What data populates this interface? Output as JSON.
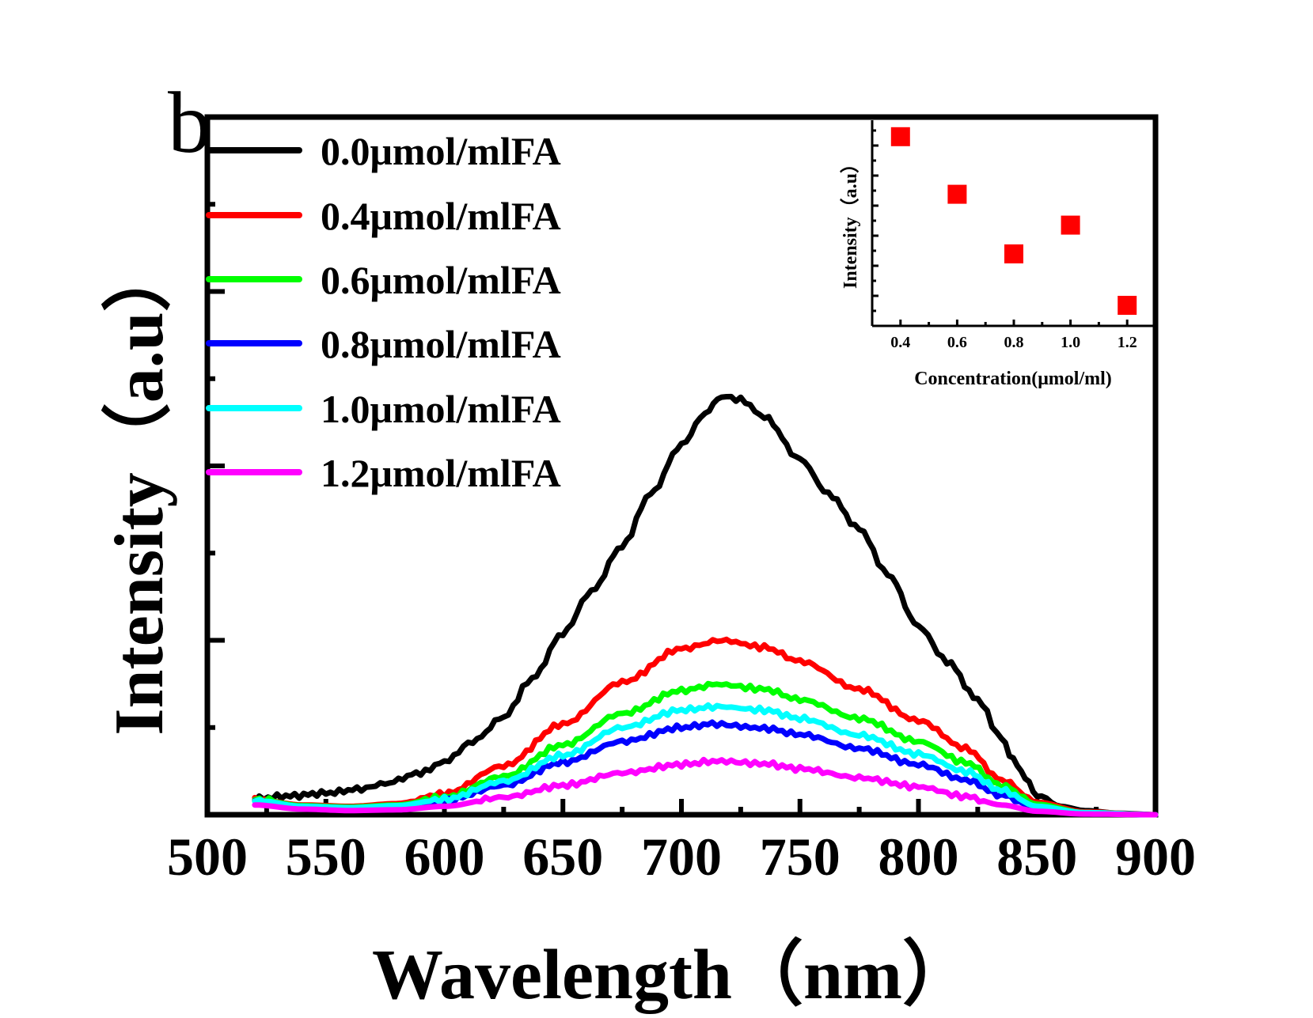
{
  "panel_label": "b",
  "chart_data": [
    {
      "id": "main",
      "type": "line",
      "title": "",
      "xlabel": "Wavelength（nm）",
      "ylabel": "Intensity（a.u）",
      "xlim": [
        500,
        900
      ],
      "ylim": [
        0,
        1
      ],
      "y_units": "relative (unlabeled axis, fraction of plotted range)",
      "x_ticks": [
        500,
        550,
        600,
        650,
        700,
        750,
        800,
        850,
        900
      ],
      "x_tick_labels": [
        "500",
        "550",
        "600",
        "650",
        "700",
        "750",
        "800",
        "850",
        "900"
      ],
      "y_ticks_labeled": false,
      "grid": false,
      "legend_position": "top-left",
      "series": [
        {
          "name": "0.0μmol/mlFA",
          "color": "#000000",
          "x": [
            520,
            535,
            550,
            565,
            575,
            590,
            600,
            612,
            625,
            637,
            650,
            662,
            675,
            687,
            700,
            710,
            717,
            725,
            735,
            750,
            762,
            775,
            787,
            800,
            812,
            825,
            835,
            840,
            845,
            850,
            860,
            870,
            885,
            900
          ],
          "y": [
            0.023,
            0.027,
            0.031,
            0.037,
            0.045,
            0.06,
            0.076,
            0.105,
            0.14,
            0.195,
            0.26,
            0.32,
            0.385,
            0.46,
            0.53,
            0.575,
            0.6,
            0.595,
            0.57,
            0.51,
            0.46,
            0.41,
            0.345,
            0.27,
            0.22,
            0.165,
            0.11,
            0.08,
            0.052,
            0.028,
            0.012,
            0.006,
            0.002,
            0.0
          ]
        },
        {
          "name": "0.4μmol/mlFA",
          "color": "#ff0000",
          "x": [
            520,
            540,
            560,
            580,
            600,
            625,
            650,
            675,
            700,
            717,
            735,
            750,
            775,
            800,
            820,
            835,
            850,
            870,
            900
          ],
          "y": [
            0.022,
            0.014,
            0.012,
            0.016,
            0.03,
            0.07,
            0.13,
            0.19,
            0.238,
            0.25,
            0.24,
            0.22,
            0.18,
            0.135,
            0.095,
            0.05,
            0.018,
            0.004,
            0.0
          ]
        },
        {
          "name": "0.6μmol/mlFA",
          "color": "#00ff00",
          "x": [
            520,
            540,
            560,
            580,
            600,
            625,
            650,
            675,
            700,
            715,
            735,
            750,
            775,
            800,
            820,
            835,
            850,
            870,
            900
          ],
          "y": [
            0.022,
            0.013,
            0.011,
            0.014,
            0.025,
            0.055,
            0.1,
            0.145,
            0.178,
            0.187,
            0.18,
            0.165,
            0.138,
            0.105,
            0.075,
            0.042,
            0.015,
            0.003,
            0.0
          ]
        },
        {
          "name": "0.8μmol/mlFA",
          "color": "#0000ff",
          "x": [
            520,
            540,
            560,
            580,
            600,
            625,
            650,
            675,
            700,
            713,
            735,
            750,
            775,
            800,
            820,
            835,
            850,
            870,
            900
          ],
          "y": [
            0.02,
            0.012,
            0.01,
            0.012,
            0.02,
            0.042,
            0.075,
            0.105,
            0.125,
            0.13,
            0.124,
            0.115,
            0.095,
            0.072,
            0.05,
            0.028,
            0.01,
            0.002,
            0.0
          ]
        },
        {
          "name": "1.0μmol/mlFA",
          "color": "#00ffff",
          "x": [
            520,
            540,
            560,
            580,
            600,
            625,
            650,
            675,
            700,
            715,
            735,
            750,
            775,
            800,
            820,
            835,
            850,
            870,
            900
          ],
          "y": [
            0.021,
            0.012,
            0.01,
            0.013,
            0.022,
            0.048,
            0.085,
            0.125,
            0.15,
            0.155,
            0.15,
            0.138,
            0.114,
            0.087,
            0.062,
            0.035,
            0.012,
            0.003,
            0.0
          ]
        },
        {
          "name": "1.2μmol/mlFA",
          "color": "#ff00ff",
          "x": [
            520,
            540,
            560,
            580,
            600,
            625,
            650,
            675,
            700,
            715,
            735,
            750,
            775,
            800,
            820,
            835,
            850,
            870,
            900
          ],
          "y": [
            0.014,
            0.008,
            0.006,
            0.007,
            0.012,
            0.025,
            0.042,
            0.06,
            0.072,
            0.077,
            0.073,
            0.066,
            0.053,
            0.04,
            0.026,
            0.014,
            0.005,
            0.001,
            0.0
          ]
        }
      ]
    },
    {
      "id": "inset",
      "type": "scatter",
      "title": "",
      "xlabel": "Concentration(μmol/ml)",
      "ylabel": "Intensity（a.u）",
      "xlim": [
        0.3,
        1.3
      ],
      "ylim": [
        0,
        1
      ],
      "y_units": "relative (unlabeled axis)",
      "x_ticks": [
        0.4,
        0.6,
        0.8,
        1.0,
        1.2
      ],
      "x_tick_labels": [
        "0.4",
        "0.6",
        "0.8",
        "1.0",
        "1.2"
      ],
      "grid": false,
      "marker": "square",
      "color": "#ff0000",
      "x": [
        0.4,
        0.6,
        0.8,
        1.0,
        1.2
      ],
      "y": [
        0.92,
        0.64,
        0.35,
        0.49,
        0.1
      ]
    }
  ]
}
